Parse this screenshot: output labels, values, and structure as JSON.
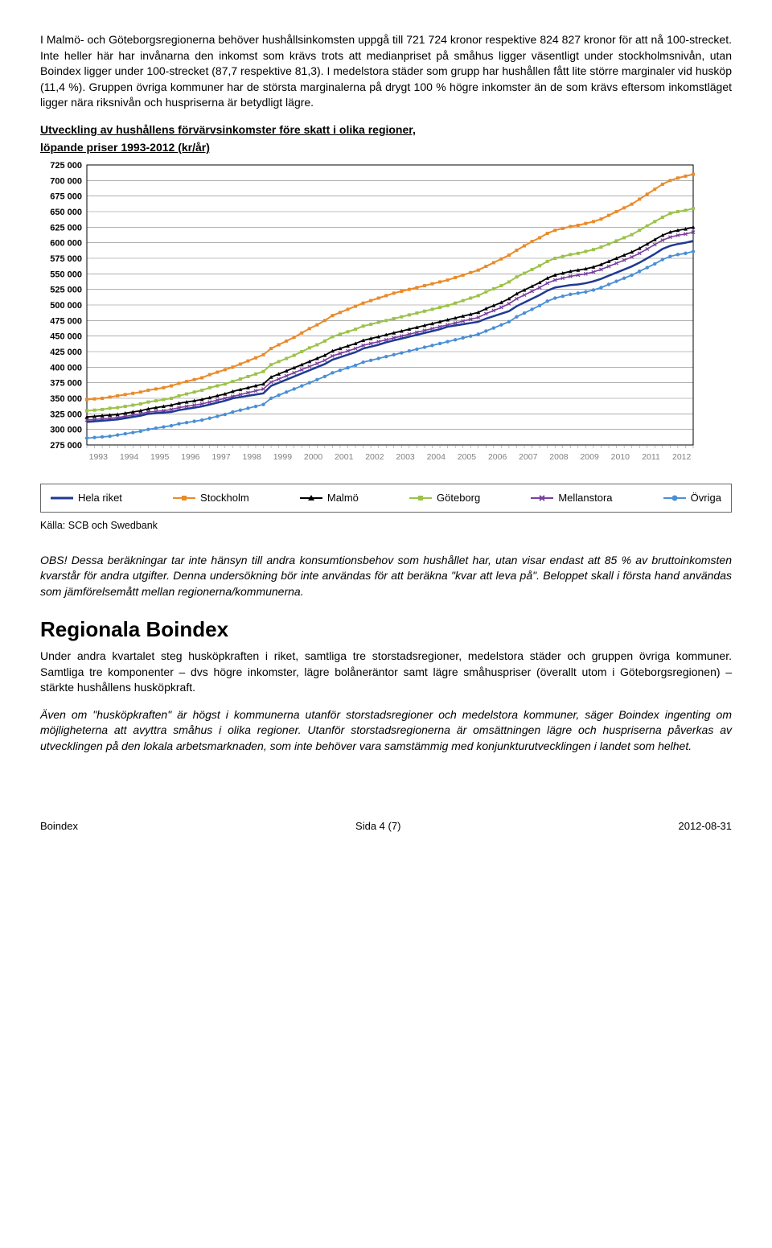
{
  "para1": "I Malmö- och Göteborgsregionerna behöver hushållsinkomsten uppgå till 721 724 kronor respektive 824 827 kronor för att nå 100-strecket. Inte heller här har invånarna den inkomst som krävs trots att medianpriset på småhus ligger väsentligt under stockholmsnivån, utan Boindex ligger under 100-strecket (87,7 respektive 81,3). I medelstora städer som grupp har hushållen fått lite större marginaler vid husköp (11,4 %). Gruppen övriga kommuner har de största marginalerna på drygt 100 % högre inkomster än de som krävs eftersom inkomstläget ligger nära riksnivån och huspriserna är betydligt lägre.",
  "chart": {
    "title_line1": "Utveckling av hushållens förvärvsinkomster före skatt i olika regioner,",
    "title_line2": "löpande priser 1993-2012 (kr/år)",
    "y_min": 275000,
    "y_max": 725000,
    "y_step": 25000,
    "x_years": [
      1993,
      1994,
      1995,
      1996,
      1997,
      1998,
      1999,
      2000,
      2001,
      2002,
      2003,
      2004,
      2005,
      2006,
      2007,
      2008,
      2009,
      2010,
      2011,
      2012
    ],
    "points_per_year": 4,
    "bg": "#ffffff",
    "grid": "#808080",
    "axis": "#000000",
    "xlabel_color": "#808080",
    "series": {
      "hela_riket": {
        "label": "Hela riket",
        "color": "#1f3a93",
        "marker": "none",
        "width": 2.5,
        "values": [
          312000,
          313000,
          314000,
          315000,
          316000,
          318000,
          320000,
          322000,
          325000,
          326000,
          327000,
          328000,
          331000,
          333000,
          335000,
          337000,
          340000,
          343000,
          346000,
          350000,
          352000,
          354000,
          356000,
          358000,
          370000,
          375000,
          380000,
          385000,
          390000,
          395000,
          400000,
          405000,
          412000,
          416000,
          420000,
          424000,
          430000,
          433000,
          436000,
          440000,
          443000,
          446000,
          449000,
          452000,
          455000,
          458000,
          461000,
          465000,
          467000,
          469000,
          471000,
          473000,
          478000,
          482000,
          486000,
          490000,
          498000,
          504000,
          510000,
          516000,
          523000,
          528000,
          530000,
          532000,
          533000,
          535000,
          538000,
          542000,
          547000,
          552000,
          557000,
          562000,
          568000,
          575000,
          582000,
          590000,
          595000,
          598000,
          600000,
          603000
        ]
      },
      "stockholm": {
        "label": "Stockholm",
        "color": "#e98b2a",
        "marker": "square",
        "width": 2,
        "values": [
          348000,
          349000,
          350000,
          352000,
          354000,
          356000,
          358000,
          360000,
          363000,
          365000,
          367000,
          370000,
          374000,
          377000,
          380000,
          383000,
          388000,
          392000,
          396000,
          400000,
          405000,
          410000,
          415000,
          420000,
          430000,
          436000,
          442000,
          448000,
          455000,
          462000,
          468000,
          475000,
          483000,
          488000,
          493000,
          498000,
          503000,
          507000,
          511000,
          515000,
          519000,
          522000,
          525000,
          528000,
          531000,
          534000,
          537000,
          540000,
          544000,
          548000,
          552000,
          556000,
          562000,
          568000,
          574000,
          580000,
          588000,
          595000,
          602000,
          608000,
          615000,
          620000,
          623000,
          626000,
          628000,
          631000,
          634000,
          638000,
          644000,
          650000,
          656000,
          662000,
          670000,
          678000,
          686000,
          694000,
          700000,
          704000,
          707000,
          710000
        ]
      },
      "malmo": {
        "label": "Malmö",
        "color": "#000000",
        "marker": "triangle",
        "width": 1.8,
        "values": [
          320000,
          321000,
          322000,
          323000,
          324000,
          326000,
          328000,
          330000,
          333000,
          335000,
          337000,
          339000,
          342000,
          344000,
          346000,
          348000,
          351000,
          354000,
          357000,
          361000,
          364000,
          367000,
          370000,
          373000,
          384000,
          389000,
          394000,
          399000,
          404000,
          409000,
          414000,
          419000,
          426000,
          430000,
          434000,
          438000,
          443000,
          446000,
          449000,
          452000,
          455000,
          458000,
          461000,
          464000,
          467000,
          470000,
          473000,
          476000,
          479000,
          482000,
          485000,
          488000,
          494000,
          499000,
          504000,
          510000,
          518000,
          524000,
          530000,
          536000,
          543000,
          548000,
          551000,
          554000,
          556000,
          558000,
          561000,
          565000,
          570000,
          575000,
          580000,
          585000,
          591000,
          598000,
          605000,
          612000,
          617000,
          620000,
          622000,
          625000
        ]
      },
      "goteborg": {
        "label": "Göteborg",
        "color": "#9cc24a",
        "marker": "square",
        "width": 2,
        "values": [
          330000,
          331000,
          332000,
          334000,
          335000,
          337000,
          339000,
          341000,
          344000,
          346000,
          348000,
          350000,
          354000,
          357000,
          360000,
          363000,
          367000,
          370000,
          373000,
          377000,
          381000,
          385000,
          389000,
          393000,
          404000,
          409000,
          414000,
          419000,
          425000,
          431000,
          436000,
          442000,
          449000,
          453000,
          457000,
          461000,
          466000,
          469000,
          472000,
          475000,
          478000,
          481000,
          484000,
          487000,
          490000,
          493000,
          496000,
          499000,
          503000,
          507000,
          511000,
          515000,
          521000,
          526000,
          531000,
          537000,
          545000,
          551000,
          557000,
          563000,
          570000,
          575000,
          578000,
          581000,
          583000,
          586000,
          589000,
          593000,
          598000,
          603000,
          608000,
          613000,
          620000,
          627000,
          634000,
          641000,
          647000,
          650000,
          652000,
          655000
        ]
      },
      "mellanstora": {
        "label": "Mellanstora",
        "color": "#7a3fa0",
        "marker": "x",
        "width": 1.6,
        "values": [
          315000,
          316000,
          317000,
          318000,
          319000,
          321000,
          323000,
          325000,
          328000,
          329000,
          330000,
          332000,
          335000,
          337000,
          339000,
          341000,
          344000,
          347000,
          350000,
          353000,
          356000,
          359000,
          362000,
          365000,
          376000,
          381000,
          386000,
          391000,
          396000,
          401000,
          406000,
          411000,
          418000,
          422000,
          426000,
          430000,
          435000,
          438000,
          441000,
          444000,
          447000,
          450000,
          453000,
          456000,
          459000,
          462000,
          465000,
          468000,
          471000,
          474000,
          477000,
          480000,
          486000,
          491000,
          496000,
          502000,
          510000,
          516000,
          522000,
          528000,
          535000,
          540000,
          543000,
          546000,
          548000,
          550000,
          553000,
          557000,
          562000,
          567000,
          572000,
          577000,
          583000,
          590000,
          597000,
          604000,
          609000,
          612000,
          614000,
          617000
        ]
      },
      "ovriga": {
        "label": "Övriga",
        "color": "#4a8fd6",
        "marker": "circle",
        "width": 1.8,
        "values": [
          286000,
          287000,
          288000,
          289000,
          291000,
          293000,
          295000,
          297000,
          300000,
          302000,
          304000,
          306000,
          309000,
          311000,
          313000,
          315000,
          318000,
          321000,
          324000,
          328000,
          331000,
          334000,
          337000,
          340000,
          350000,
          355000,
          360000,
          365000,
          370000,
          375000,
          380000,
          385000,
          391000,
          395000,
          399000,
          403000,
          408000,
          411000,
          414000,
          417000,
          420000,
          423000,
          426000,
          429000,
          432000,
          435000,
          438000,
          441000,
          444000,
          447000,
          450000,
          453000,
          458000,
          463000,
          468000,
          473000,
          481000,
          487000,
          493000,
          499000,
          506000,
          511000,
          514000,
          517000,
          519000,
          521000,
          524000,
          528000,
          533000,
          538000,
          543000,
          548000,
          554000,
          560000,
          566000,
          573000,
          578000,
          581000,
          583000,
          586000
        ]
      }
    }
  },
  "source": "Källa: SCB och Swedbank",
  "para2_lead": "OBS!",
  "para2": " Dessa beräkningar tar inte hänsyn till andra konsumtionsbehov som hushållet har, utan visar endast att 85 % av bruttoinkomsten kvarstår för andra utgifter. Denna undersökning bör inte användas för att beräkna \"kvar att leva på\". Beloppet skall i första hand användas som jämförelsemått mellan regionerna/kommunerna.",
  "h2": "Regionala Boindex",
  "para3": "Under andra kvartalet steg husköpkraften i riket, samtliga tre storstadsregioner, medelstora städer och gruppen övriga kommuner. Samtliga tre komponenter – dvs högre inkomster, lägre bolåneräntor samt lägre småhuspriser (överallt utom i Göteborgsregionen) – stärkte hushållens husköpkraft.",
  "para4": "Även om \"husköpkraften\" är högst i kommunerna utanför storstadsregioner och medelstora kommuner, säger Boindex ingenting om möjligheterna att avyttra småhus i olika regioner. Utanför storstadsregionerna är omsättningen lägre och huspriserna påverkas av utvecklingen på den lokala arbetsmarknaden, som inte behöver vara samstämmig med konjunkturutvecklingen i landet som helhet.",
  "footer": {
    "left": "Boindex",
    "center": "Sida 4 (7)",
    "right": "2012-08-31"
  }
}
